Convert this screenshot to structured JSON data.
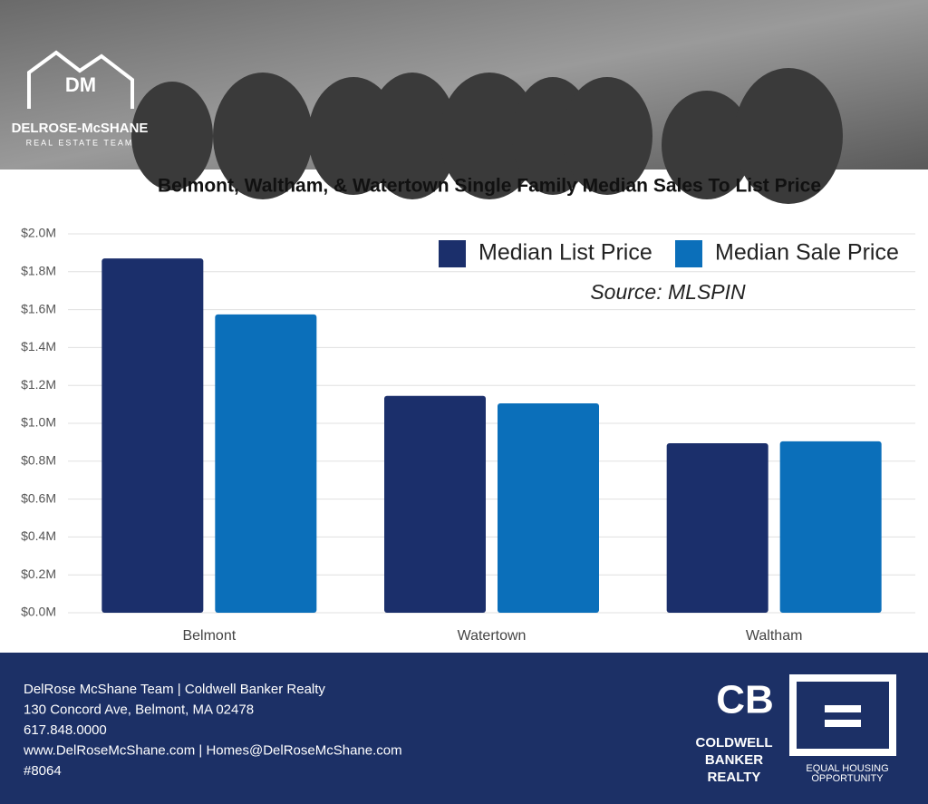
{
  "header": {
    "brand": "DELROSE-McSHANE",
    "tagline": "REAL ESTATE TEAM"
  },
  "chart_data": {
    "type": "bar",
    "title": "Belmont, Waltham, & Watertown Single Family Median Sales To List Price",
    "annotation": "Source: MLSPIN",
    "categories": [
      "Belmont",
      "Watertown",
      "Waltham"
    ],
    "series": [
      {
        "name": "Median List Price",
        "color": "#1b2f6b",
        "values": [
          1870000,
          1145000,
          895000
        ]
      },
      {
        "name": "Median Sale Price",
        "color": "#0b6fba",
        "values": [
          1575000,
          1105000,
          905000
        ]
      }
    ],
    "ylim": [
      0,
      2000000
    ],
    "yticks": [
      {
        "value": 0,
        "label": "$0.0M"
      },
      {
        "value": 200000,
        "label": "$0.2M"
      },
      {
        "value": 400000,
        "label": "$0.4M"
      },
      {
        "value": 600000,
        "label": "$0.6M"
      },
      {
        "value": 800000,
        "label": "$0.8M"
      },
      {
        "value": 1000000,
        "label": "$1.0M"
      },
      {
        "value": 1200000,
        "label": "$1.2M"
      },
      {
        "value": 1400000,
        "label": "$1.4M"
      },
      {
        "value": 1600000,
        "label": "$1.6M"
      },
      {
        "value": 1800000,
        "label": "$1.8M"
      },
      {
        "value": 2000000,
        "label": "$2.0M"
      }
    ],
    "grid": true,
    "legend": "top-right"
  },
  "footer": {
    "lines": [
      "DelRose McShane Team | Coldwell Banker Realty",
      "130 Concord Ave, Belmont, MA 02478",
      "617.848.0000",
      "www.DelRoseMcShane.com | Homes@DelRoseMcShane.com",
      "#8064"
    ],
    "logo1": [
      "COLDWELL",
      "BANKER",
      "REALTY"
    ],
    "logo2": [
      "EQUAL HOUSING",
      "OPPORTUNITY"
    ]
  }
}
